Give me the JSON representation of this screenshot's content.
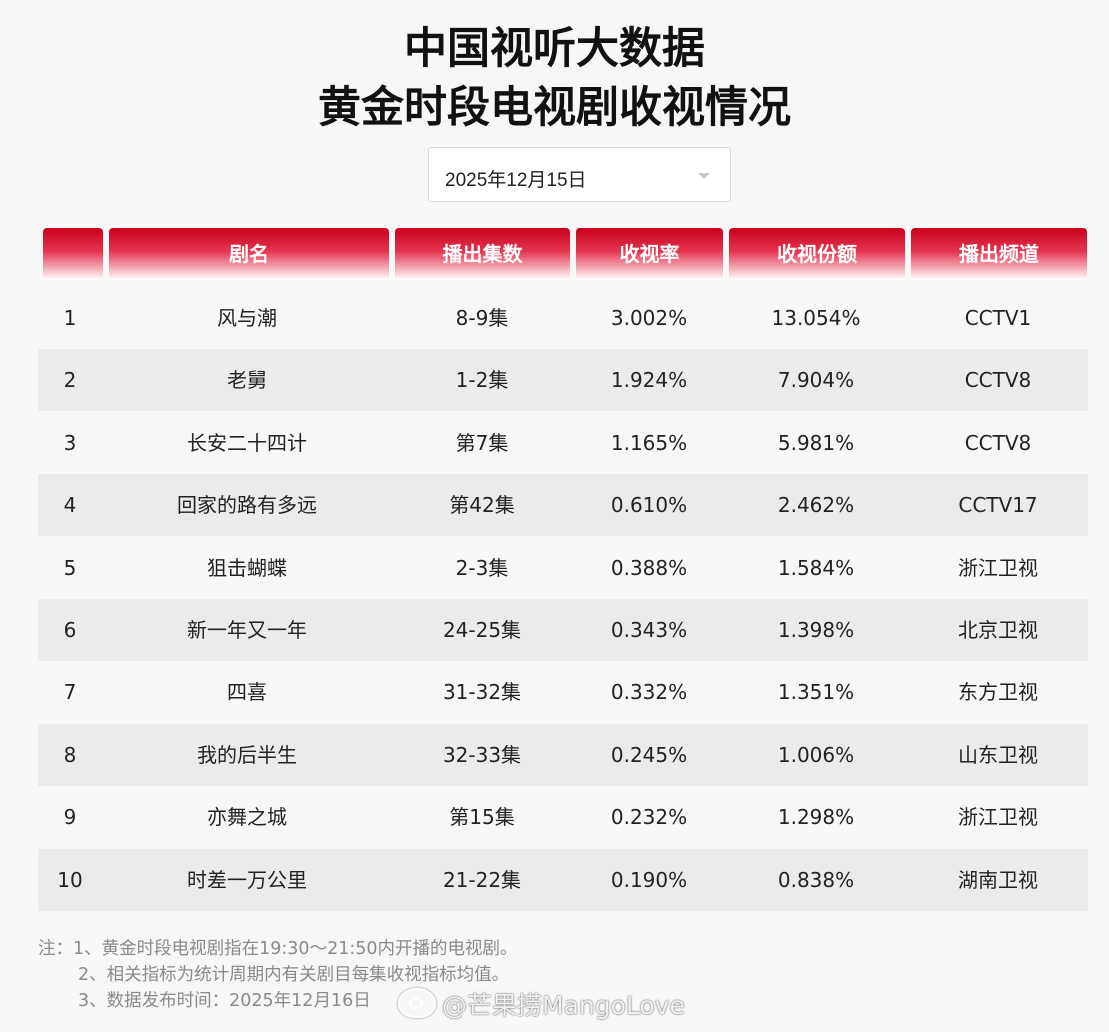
{
  "title": {
    "line1": "中国视听大数据",
    "line2": "黄金时段电视剧收视情况"
  },
  "date_select": {
    "value": "2025年12月15日",
    "icon": "chevron-down-icon"
  },
  "table": {
    "headers": [
      "",
      "剧名",
      "播出集数",
      "收视率",
      "收视份额",
      "播出频道"
    ],
    "header_color": "#d3122e",
    "rows": [
      {
        "rank": "1",
        "name": "风与潮",
        "episodes": "8-9集",
        "rating": "3.002%",
        "share": "13.054%",
        "channel": "CCTV1"
      },
      {
        "rank": "2",
        "name": "老舅",
        "episodes": "1-2集",
        "rating": "1.924%",
        "share": "7.904%",
        "channel": "CCTV8"
      },
      {
        "rank": "3",
        "name": "长安二十四计",
        "episodes": "第7集",
        "rating": "1.165%",
        "share": "5.981%",
        "channel": "CCTV8"
      },
      {
        "rank": "4",
        "name": "回家的路有多远",
        "episodes": "第42集",
        "rating": "0.610%",
        "share": "2.462%",
        "channel": "CCTV17"
      },
      {
        "rank": "5",
        "name": "狙击蝴蝶",
        "episodes": "2-3集",
        "rating": "0.388%",
        "share": "1.584%",
        "channel": "浙江卫视"
      },
      {
        "rank": "6",
        "name": "新一年又一年",
        "episodes": "24-25集",
        "rating": "0.343%",
        "share": "1.398%",
        "channel": "北京卫视"
      },
      {
        "rank": "7",
        "name": "四喜",
        "episodes": "31-32集",
        "rating": "0.332%",
        "share": "1.351%",
        "channel": "东方卫视"
      },
      {
        "rank": "8",
        "name": "我的后半生",
        "episodes": "32-33集",
        "rating": "0.245%",
        "share": "1.006%",
        "channel": "山东卫视"
      },
      {
        "rank": "9",
        "name": "亦舞之城",
        "episodes": "第15集",
        "rating": "0.232%",
        "share": "1.298%",
        "channel": "浙江卫视"
      },
      {
        "rank": "10",
        "name": "时差一万公里",
        "episodes": "21-22集",
        "rating": "0.190%",
        "share": "0.838%",
        "channel": "湖南卫视"
      }
    ]
  },
  "notes": {
    "line1": "注：1、黄金时段电视剧指在19:30～21:50内开播的电视剧。",
    "line2": "2、相关指标为统计周期内有关剧目每集收视指标均值。",
    "line3": "3、数据发布时间：2025年12月16日"
  },
  "watermark": {
    "text": "@芒果捞MangoLove",
    "icon": "weibo-icon"
  }
}
